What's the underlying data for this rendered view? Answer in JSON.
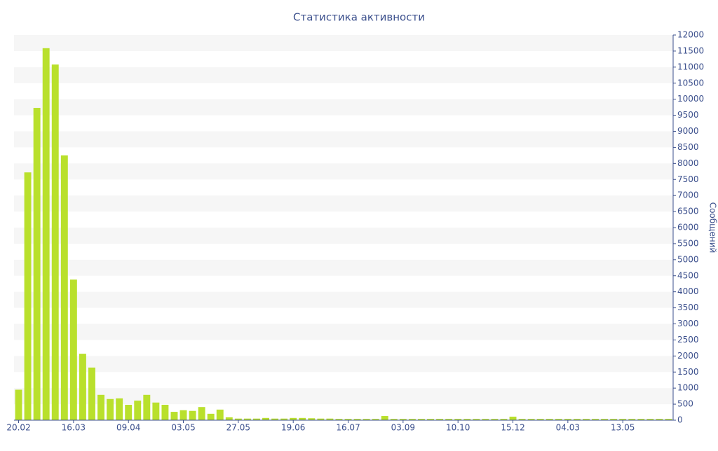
{
  "chart_data": {
    "type": "bar",
    "title": "Статистика активности",
    "y_label": "Сообщений",
    "categories": [
      "20.02",
      null,
      null,
      null,
      null,
      null,
      "16.03",
      null,
      null,
      null,
      null,
      null,
      "09.04",
      null,
      null,
      null,
      null,
      null,
      "03.05",
      null,
      null,
      null,
      null,
      null,
      "27.05",
      null,
      null,
      null,
      null,
      null,
      "19.06",
      null,
      null,
      null,
      null,
      null,
      "16.07",
      null,
      null,
      null,
      null,
      null,
      "03.09",
      null,
      null,
      null,
      null,
      null,
      "10.10",
      null,
      null,
      null,
      null,
      null,
      "15.12",
      null,
      null,
      null,
      null,
      null,
      "04.03",
      null,
      null,
      null,
      null,
      null,
      "13.05",
      null,
      null,
      null,
      null,
      null
    ],
    "values": [
      950,
      7720,
      9730,
      11590,
      11080,
      8250,
      4380,
      2070,
      1640,
      790,
      660,
      680,
      480,
      610,
      790,
      550,
      480,
      260,
      310,
      290,
      410,
      200,
      330,
      90,
      50,
      50,
      50,
      70,
      50,
      50,
      70,
      70,
      60,
      50,
      50,
      40,
      40,
      40,
      40,
      40,
      130,
      40,
      40,
      40,
      40,
      40,
      40,
      40,
      40,
      40,
      40,
      40,
      40,
      40,
      110,
      40,
      40,
      40,
      40,
      40,
      40,
      40,
      40,
      40,
      40,
      40,
      40,
      40,
      40,
      40,
      40,
      40
    ],
    "color": "#b9e02c",
    "ylim": [
      0,
      12000
    ],
    "yticks": [
      0,
      500,
      1000,
      1500,
      2000,
      2500,
      3000,
      3500,
      4000,
      4500,
      5000,
      5500,
      6000,
      6500,
      7000,
      7500,
      8000,
      8500,
      9000,
      9500,
      10000,
      10500,
      11000,
      11500,
      12000
    ],
    "grid": true
  }
}
